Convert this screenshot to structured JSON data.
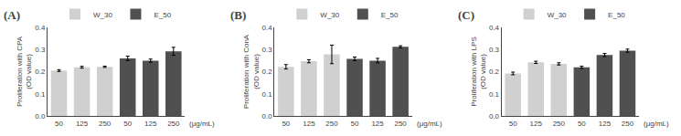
{
  "chart_data": [
    {
      "type": "bar",
      "title": "(A)",
      "ylabel": "Proliferation with CPA\n(OD value)",
      "xlabel": "(μg/mL)",
      "categories": [
        "50",
        "125",
        "250",
        "50",
        "125",
        "250"
      ],
      "series": [
        {
          "name": "W_30",
          "color": "#d0d0d0",
          "values": [
            0.205,
            0.22,
            0.222,
            null,
            null,
            null
          ],
          "errors": [
            0.004,
            0.004,
            0.003,
            null,
            null,
            null
          ]
        },
        {
          "name": "E_50",
          "color": "#505050",
          "values": [
            null,
            null,
            null,
            0.26,
            0.25,
            0.292
          ],
          "errors": [
            null,
            null,
            null,
            0.01,
            0.007,
            0.018
          ]
        }
      ],
      "ylim": [
        0.0,
        0.4
      ],
      "yticks": [
        {
          "value": 0.0,
          "label": "0.0"
        },
        0.1,
        0.2,
        0.3,
        0.4
      ],
      "grid": false,
      "legend": "upper left"
    },
    {
      "type": "bar",
      "title": "(B)",
      "ylabel": "Proliferation with ConA\n(OD value)",
      "xlabel": "(μg/mL)",
      "categories": [
        "50",
        "125",
        "250",
        "50",
        "125",
        "250"
      ],
      "series": [
        {
          "name": "W_30",
          "color": "#d0d0d0",
          "values": [
            0.222,
            0.247,
            0.278,
            null,
            null,
            null
          ],
          "errors": [
            0.01,
            0.007,
            0.042,
            null,
            null,
            null
          ]
        },
        {
          "name": "E_50",
          "color": "#505050",
          "values": [
            null,
            null,
            null,
            0.258,
            0.25,
            0.312
          ],
          "errors": [
            null,
            null,
            null,
            0.008,
            0.01,
            0.005
          ]
        }
      ],
      "ylim": [
        0.0,
        0.4
      ],
      "yticks": [
        {
          "value": 0.0,
          "label": "0.0"
        },
        0.1,
        0.2,
        0.3,
        0.4
      ],
      "grid": false,
      "legend": "upper left"
    },
    {
      "type": "bar",
      "title": "(C)",
      "ylabel": "Proliferation with LPS\n(OD value)",
      "xlabel": "(μg/mL)",
      "categories": [
        "50",
        "125",
        "250",
        "50",
        "125",
        "250"
      ],
      "series": [
        {
          "name": "W_30",
          "color": "#d0d0d0",
          "values": [
            0.192,
            0.242,
            0.235,
            null,
            null,
            null
          ],
          "errors": [
            0.006,
            0.005,
            0.005,
            null,
            null,
            null
          ]
        },
        {
          "name": "E_50",
          "color": "#505050",
          "values": [
            null,
            null,
            null,
            0.22,
            0.275,
            0.295
          ],
          "errors": [
            null,
            null,
            null,
            0.005,
            0.007,
            0.007
          ]
        }
      ],
      "ylim": [
        0.0,
        0.4
      ],
      "yticks": [
        {
          "value": 0.0,
          "label": "0.0"
        },
        0.1,
        0.2,
        0.3,
        0.4
      ],
      "grid": false,
      "legend": "upper left"
    }
  ]
}
